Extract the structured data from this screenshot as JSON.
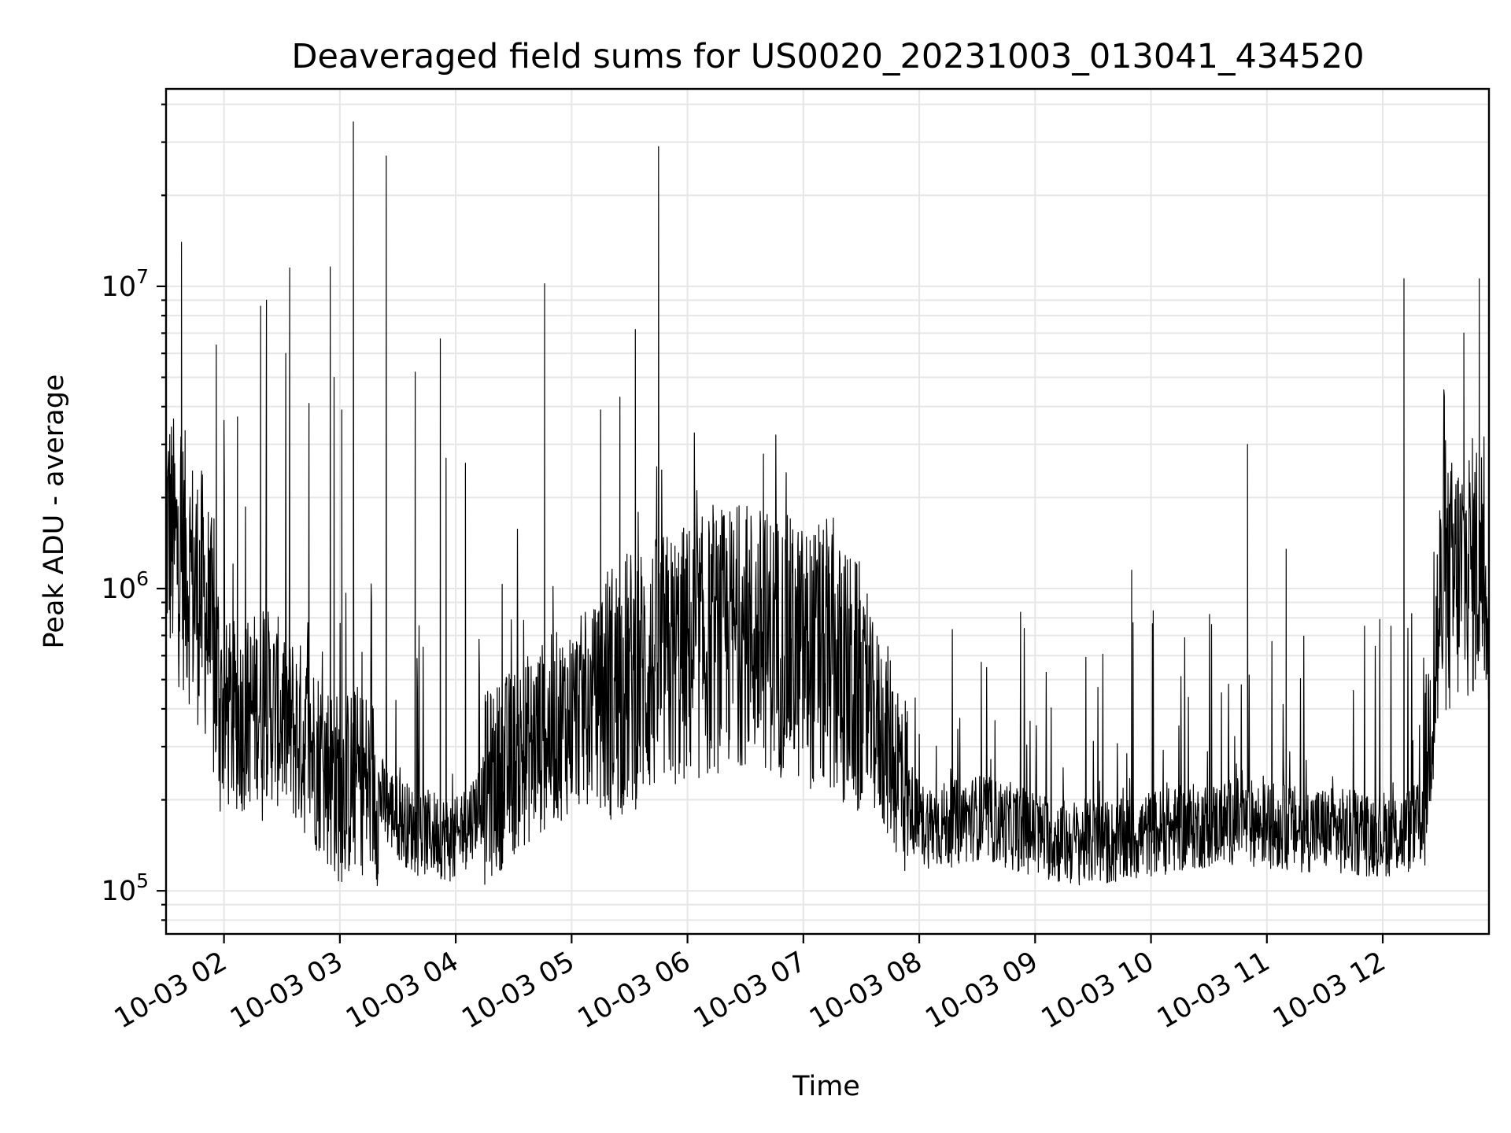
{
  "chart_data": {
    "type": "line",
    "title": "Deaveraged field sums for US0020_20231003_013041_434520",
    "xlabel": "Time",
    "ylabel": "Peak ADU - average",
    "yscale": "log",
    "ylim": [
      72000,
      45000000
    ],
    "xlim": [
      "2023-10-03 01:30",
      "2023-10-03 12:55"
    ],
    "grid": "both-major-and-minor",
    "x_ticks": [
      {
        "value": "2023-10-03 02:00",
        "label": "10-03 02"
      },
      {
        "value": "2023-10-03 03:00",
        "label": "10-03 03"
      },
      {
        "value": "2023-10-03 04:00",
        "label": "10-03 04"
      },
      {
        "value": "2023-10-03 05:00",
        "label": "10-03 05"
      },
      {
        "value": "2023-10-03 06:00",
        "label": "10-03 06"
      },
      {
        "value": "2023-10-03 07:00",
        "label": "10-03 07"
      },
      {
        "value": "2023-10-03 08:00",
        "label": "10-03 08"
      },
      {
        "value": "2023-10-03 09:00",
        "label": "10-03 09"
      },
      {
        "value": "2023-10-03 10:00",
        "label": "10-03 10"
      },
      {
        "value": "2023-10-03 11:00",
        "label": "10-03 11"
      },
      {
        "value": "2023-10-03 12:00",
        "label": "10-03 12"
      }
    ],
    "y_ticks": [
      {
        "value": 100000,
        "base": "10",
        "exp": "5"
      },
      {
        "value": 1000000,
        "base": "10",
        "exp": "6"
      },
      {
        "value": 10000000,
        "base": "10",
        "exp": "7"
      }
    ],
    "series": [
      {
        "color": "#000000",
        "x": [
          "2023-10-03 01:30",
          "2023-10-03 01:35",
          "2023-10-03 01:40",
          "2023-10-03 01:45",
          "2023-10-03 01:50",
          "2023-10-03 01:55",
          "2023-10-03 02:00",
          "2023-10-03 02:10",
          "2023-10-03 02:20",
          "2023-10-03 02:30",
          "2023-10-03 02:40",
          "2023-10-03 02:50",
          "2023-10-03 03:00",
          "2023-10-03 03:10",
          "2023-10-03 03:20",
          "2023-10-03 03:30",
          "2023-10-03 03:40",
          "2023-10-03 03:50",
          "2023-10-03 04:00",
          "2023-10-03 04:15",
          "2023-10-03 04:30",
          "2023-10-03 04:45",
          "2023-10-03 05:00",
          "2023-10-03 05:15",
          "2023-10-03 05:30",
          "2023-10-03 05:45",
          "2023-10-03 06:00",
          "2023-10-03 06:15",
          "2023-10-03 06:30",
          "2023-10-03 06:45",
          "2023-10-03 07:00",
          "2023-10-03 07:15",
          "2023-10-03 07:30",
          "2023-10-03 07:45",
          "2023-10-03 08:00",
          "2023-10-03 08:15",
          "2023-10-03 08:30",
          "2023-10-03 08:45",
          "2023-10-03 09:00",
          "2023-10-03 09:15",
          "2023-10-03 09:30",
          "2023-10-03 09:45",
          "2023-10-03 10:00",
          "2023-10-03 10:15",
          "2023-10-03 10:30",
          "2023-10-03 10:45",
          "2023-10-03 11:00",
          "2023-10-03 11:15",
          "2023-10-03 11:30",
          "2023-10-03 11:45",
          "2023-10-03 12:00",
          "2023-10-03 12:10",
          "2023-10-03 12:20",
          "2023-10-03 12:30",
          "2023-10-03 12:40",
          "2023-10-03 12:50",
          "2023-10-03 12:55"
        ],
        "values": [
          1500000,
          1200000,
          1100000,
          900000,
          800000,
          500000,
          350000,
          350000,
          400000,
          350000,
          300000,
          250000,
          200000,
          220000,
          200000,
          170000,
          150000,
          150000,
          140000,
          200000,
          250000,
          300000,
          350000,
          400000,
          450000,
          500000,
          550000,
          600000,
          650000,
          600000,
          550000,
          500000,
          400000,
          280000,
          160000,
          160000,
          170000,
          160000,
          150000,
          140000,
          140000,
          140000,
          150000,
          155000,
          160000,
          165000,
          160000,
          155000,
          155000,
          150000,
          150000,
          150000,
          160000,
          800000,
          1000000,
          1100000,
          1000000
        ]
      }
    ],
    "spikes": [
      {
        "x": "2023-10-03 01:38",
        "y": 14000000
      },
      {
        "x": "2023-10-03 01:56",
        "y": 6400000
      },
      {
        "x": "2023-10-03 02:00",
        "y": 3600000
      },
      {
        "x": "2023-10-03 02:07",
        "y": 3700000
      },
      {
        "x": "2023-10-03 02:19",
        "y": 8600000
      },
      {
        "x": "2023-10-03 02:22",
        "y": 9000000
      },
      {
        "x": "2023-10-03 02:32",
        "y": 6000000
      },
      {
        "x": "2023-10-03 02:34",
        "y": 11500000
      },
      {
        "x": "2023-10-03 02:44",
        "y": 4100000
      },
      {
        "x": "2023-10-03 02:55",
        "y": 11600000
      },
      {
        "x": "2023-10-03 02:57",
        "y": 5000000
      },
      {
        "x": "2023-10-03 03:01",
        "y": 3900000
      },
      {
        "x": "2023-10-03 03:07",
        "y": 35000000
      },
      {
        "x": "2023-10-03 03:24",
        "y": 27000000
      },
      {
        "x": "2023-10-03 03:39",
        "y": 5200000
      },
      {
        "x": "2023-10-03 03:52",
        "y": 6700000
      },
      {
        "x": "2023-10-03 03:55",
        "y": 2700000
      },
      {
        "x": "2023-10-03 04:05",
        "y": 2600000
      },
      {
        "x": "2023-10-03 04:46",
        "y": 10200000
      },
      {
        "x": "2023-10-03 05:15",
        "y": 3900000
      },
      {
        "x": "2023-10-03 05:25",
        "y": 4300000
      },
      {
        "x": "2023-10-03 05:33",
        "y": 7200000
      },
      {
        "x": "2023-10-03 05:45",
        "y": 29000000
      },
      {
        "x": "2023-10-03 09:50",
        "y": 1150000
      },
      {
        "x": "2023-10-03 10:50",
        "y": 3000000
      },
      {
        "x": "2023-10-03 11:10",
        "y": 1350000
      },
      {
        "x": "2023-10-03 12:11",
        "y": 10600000
      },
      {
        "x": "2023-10-03 12:42",
        "y": 7000000
      },
      {
        "x": "2023-10-03 12:50",
        "y": 10600000
      }
    ]
  }
}
